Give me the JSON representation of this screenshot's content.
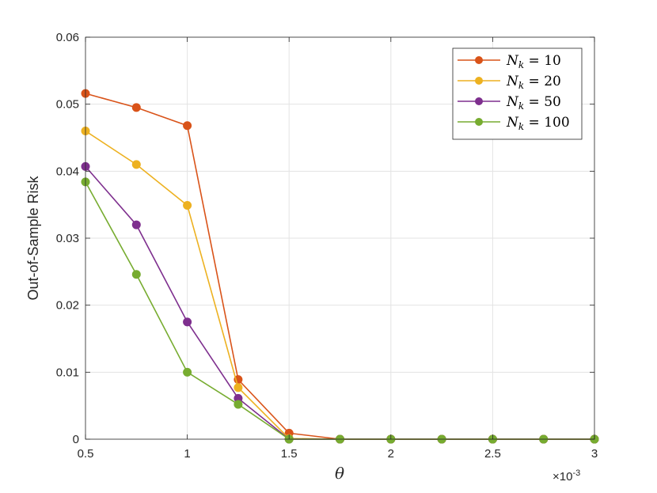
{
  "chart_data": {
    "type": "line",
    "title": "",
    "xlabel": "θ",
    "ylabel": "Out-of-Sample Risk",
    "x_exponent_base": "×10",
    "x_exponent_power": "-3",
    "xlim": [
      0.5,
      3
    ],
    "ylim": [
      0,
      0.06
    ],
    "x_ticks": [
      "0.5",
      "1",
      "1.5",
      "2",
      "2.5",
      "3"
    ],
    "y_ticks": [
      "0",
      "0.01",
      "0.02",
      "0.03",
      "0.04",
      "0.05",
      "0.06"
    ],
    "grid": true,
    "legend_position": "top-right",
    "x": [
      0.5,
      0.75,
      1.0,
      1.25,
      1.5,
      1.75,
      2.0,
      2.25,
      2.5,
      2.75,
      3.0
    ],
    "series": [
      {
        "name": "N_k = 10",
        "legend_main": "N",
        "legend_sub": "k",
        "legend_rest": " = 10",
        "color": "#D95319",
        "values": [
          0.0516,
          0.0495,
          0.0468,
          0.0089,
          0.0009,
          0,
          0,
          0,
          0,
          0,
          0
        ]
      },
      {
        "name": "N_k = 20",
        "legend_main": "N",
        "legend_sub": "k",
        "legend_rest": " = 20",
        "color": "#EDB120",
        "values": [
          0.046,
          0.041,
          0.0349,
          0.0077,
          0.0001,
          0,
          0,
          0,
          0,
          0,
          0
        ]
      },
      {
        "name": "N_k = 50",
        "legend_main": "N",
        "legend_sub": "k",
        "legend_rest": " = 50",
        "color": "#7E2F8E",
        "values": [
          0.0407,
          0.032,
          0.0175,
          0.0061,
          0.0,
          0,
          0,
          0,
          0,
          0,
          0
        ]
      },
      {
        "name": "N_k = 100",
        "legend_main": "N",
        "legend_sub": "k",
        "legend_rest": " = 100",
        "color": "#77AC30",
        "values": [
          0.0384,
          0.0246,
          0.01,
          0.0052,
          0.0,
          0,
          0,
          0,
          0,
          0,
          0
        ]
      }
    ]
  }
}
